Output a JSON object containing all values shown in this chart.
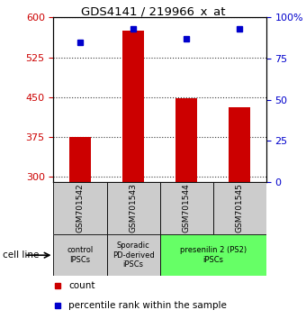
{
  "title": "GDS4141 / 219966_x_at",
  "samples": [
    "GSM701542",
    "GSM701543",
    "GSM701544",
    "GSM701545"
  ],
  "counts": [
    375,
    575,
    447,
    430
  ],
  "percentiles": [
    85,
    93,
    87,
    93
  ],
  "ymin": 290,
  "ymax": 600,
  "yticks": [
    300,
    375,
    450,
    525,
    600
  ],
  "pct_yticks": [
    0,
    25,
    50,
    75,
    100
  ],
  "bar_color": "#cc0000",
  "dot_color": "#0000cc",
  "groups": [
    {
      "label": "control\nIPSCs",
      "start": 0,
      "end": 1,
      "color": "#cccccc"
    },
    {
      "label": "Sporadic\nPD-derived\niPSCs",
      "start": 1,
      "end": 2,
      "color": "#cccccc"
    },
    {
      "label": "presenilin 2 (PS2)\niPSCs",
      "start": 2,
      "end": 4,
      "color": "#66ff66"
    }
  ],
  "cell_line_label": "cell line",
  "legend_count_label": "count",
  "legend_pct_label": "percentile rank within the sample",
  "left_axis_color": "#cc0000",
  "right_axis_color": "#0000cc"
}
